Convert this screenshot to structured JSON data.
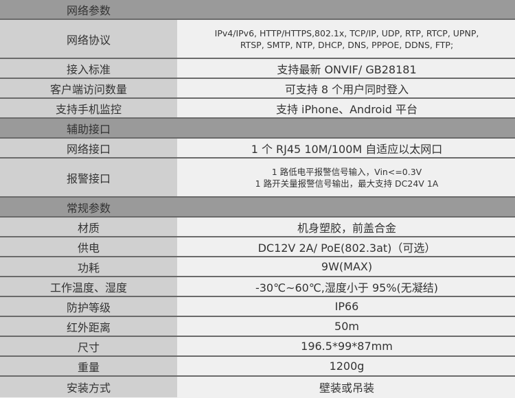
{
  "sections": [
    {
      "title": "网络参数",
      "rows": [
        {
          "label": "网络协议",
          "value": "IPv4/IPv6, HTTP/HTTPS,802.1x, TCP/IP, UDP, RTP, RTCP, UPNP,",
          "value2": "RTSP, SMTP, NTP, DHCP, DNS, PPPOE, DDNS, FTP;"
        },
        {
          "label": "接入标准",
          "value": "支持最新 ONVIF/ GB28181"
        },
        {
          "label": "客户端访问数量",
          "value": "可支持 8 个用户同时登入"
        },
        {
          "label": "支持手机监控",
          "value": "支持 iPhone、Android 平台"
        }
      ]
    },
    {
      "title": "辅助接口",
      "rows": [
        {
          "label": "网络接口",
          "value": "1 个 RJ45 10M/100M 自适应以太网口"
        },
        {
          "label": "报警接口",
          "value": "1 路低电平报警信号输入，Vin<=0.3V",
          "value2": "1 路开关量报警信号输出，最大支持 DC24V 1A"
        }
      ]
    },
    {
      "title": "常规参数",
      "rows": [
        {
          "label": "材质",
          "value": "机身塑胶，前盖合金"
        },
        {
          "label": "供电",
          "value": "DC12V 2A/ PoE(802.3at)（可选）"
        },
        {
          "label": "功耗",
          "value": "9W(MAX)"
        },
        {
          "label": "工作温度、湿度",
          "value": "-30℃~60℃,湿度小于 95%(无凝结)"
        },
        {
          "label": "防护等级",
          "value": "IP66"
        },
        {
          "label": "红外距离",
          "value": "50m"
        },
        {
          "label": "尺寸",
          "value": "196.5*99*87mm"
        },
        {
          "label": "重量",
          "value": "1200g"
        },
        {
          "label": "安装方式",
          "value": "壁装或吊装"
        }
      ]
    }
  ]
}
